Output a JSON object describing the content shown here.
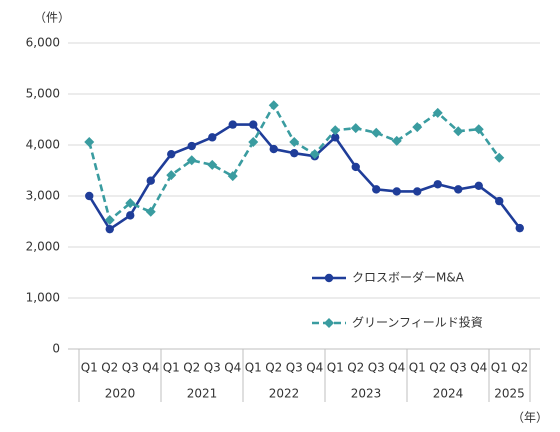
{
  "chart_data": {
    "type": "line",
    "y_unit": "（件）",
    "x_unit": "（年）",
    "groups": [
      {
        "label": "2020",
        "categories": [
          "Q1",
          "Q2",
          "Q3",
          "Q4"
        ]
      },
      {
        "label": "2021",
        "categories": [
          "Q1",
          "Q2",
          "Q3",
          "Q4"
        ]
      },
      {
        "label": "2022",
        "categories": [
          "Q1",
          "Q2",
          "Q3",
          "Q4"
        ]
      },
      {
        "label": "2023",
        "categories": [
          "Q1",
          "Q2",
          "Q3",
          "Q4"
        ]
      },
      {
        "label": "2024",
        "categories": [
          "Q1",
          "Q2",
          "Q3",
          "Q4"
        ]
      },
      {
        "label": "2025",
        "categories": [
          "Q1",
          "Q2"
        ]
      }
    ],
    "series": [
      {
        "name": "クロスボーダーM&A",
        "color": "#1f3d99",
        "dashed": false,
        "marker": "circle",
        "values": [
          3000,
          2350,
          2620,
          3300,
          3820,
          3980,
          4150,
          4400,
          4400,
          3920,
          3840,
          3780,
          4150,
          3570,
          3130,
          3090,
          3090,
          3230,
          3130,
          3200,
          2900,
          2370
        ]
      },
      {
        "name": "グリーンフィールド投資",
        "color": "#3a9ca0",
        "dashed": true,
        "marker": "diamond",
        "values": [
          4060,
          2530,
          2860,
          2690,
          3410,
          3700,
          3610,
          3390,
          4060,
          4780,
          4060,
          3820,
          4290,
          4330,
          4240,
          4080,
          4350,
          4630,
          4270,
          4310,
          3750,
          null
        ]
      }
    ],
    "ylim": [
      0,
      6000
    ],
    "yticks": [
      0,
      {
        "value": 1000,
        "label": "1,000"
      },
      {
        "value": 2000,
        "label": "2,000"
      },
      {
        "value": 3000,
        "label": "3,000"
      },
      {
        "value": 4000,
        "label": "4,000"
      },
      {
        "value": 5000,
        "label": "5,000"
      },
      {
        "value": 6000,
        "label": "6,000"
      }
    ],
    "grid": true
  }
}
